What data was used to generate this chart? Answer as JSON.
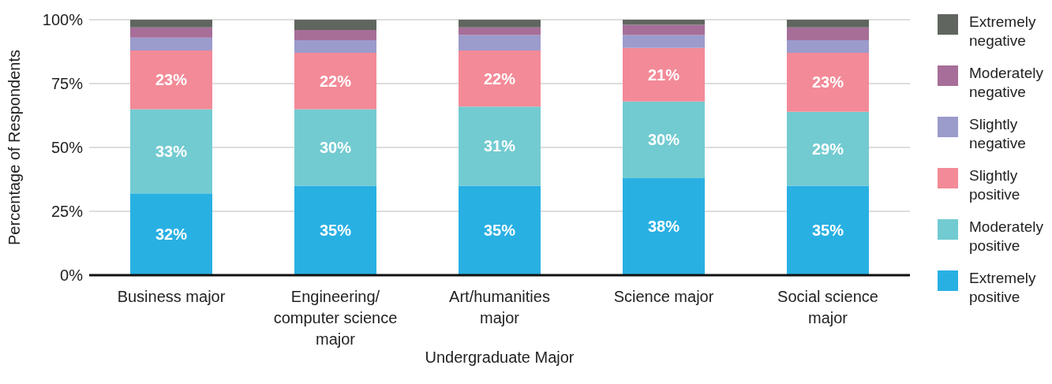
{
  "chart_data": {
    "type": "bar",
    "stacked": true,
    "xlabel": "Undergraduate Major",
    "ylabel": "Percentage of Respondents",
    "categories": [
      "Business major",
      "Engineering/computer science major",
      "Art/humanities major",
      "Science major",
      "Social science major"
    ],
    "series": [
      {
        "name": "Extremely positive",
        "color": "#29b0e3",
        "values": [
          32,
          35,
          35,
          38,
          35
        ],
        "value_labels": [
          "32%",
          "35%",
          "35%",
          "38%",
          "35%"
        ]
      },
      {
        "name": "Moderately positive",
        "color": "#72cbd1",
        "values": [
          33,
          30,
          31,
          30,
          29
        ],
        "value_labels": [
          "33%",
          "30%",
          "31%",
          "30%",
          "29%"
        ]
      },
      {
        "name": "Slightly positive",
        "color": "#f38a97",
        "values": [
          23,
          22,
          22,
          21,
          23
        ],
        "value_labels": [
          "23%",
          "22%",
          "22%",
          "21%",
          "23%"
        ]
      },
      {
        "name": "Slightly negative",
        "color": "#9b9bcc",
        "values": [
          5,
          5,
          6,
          5,
          5
        ]
      },
      {
        "name": "Moderately negative",
        "color": "#a66e98",
        "values": [
          4,
          4,
          3,
          4,
          5
        ]
      },
      {
        "name": "Extremely negative",
        "color": "#60665f",
        "values": [
          3,
          4,
          3,
          2,
          3
        ]
      }
    ],
    "ylim": [
      0,
      100
    ],
    "yticks": [
      {
        "value": 0,
        "label": "0%"
      },
      {
        "value": 25,
        "label": "25%"
      },
      {
        "value": 50,
        "label": "50%"
      },
      {
        "value": 75,
        "label": "75%"
      },
      {
        "value": 100,
        "label": "100%"
      }
    ],
    "grid": "y",
    "legend": "right"
  }
}
